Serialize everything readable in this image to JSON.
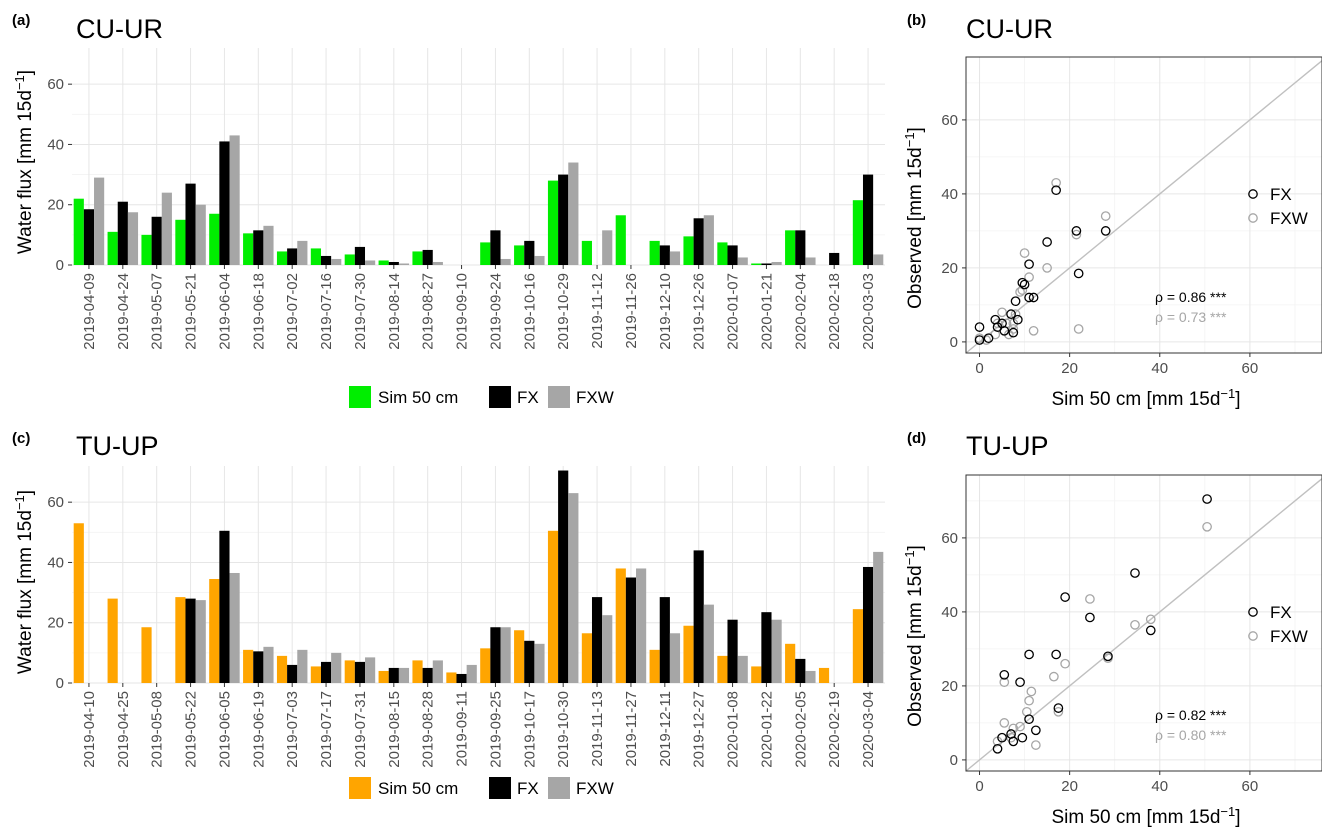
{
  "colors": {
    "sim_cu": "#00ee00",
    "sim_tu": "#ffa500",
    "fx": "#000000",
    "fxw": "#a6a6a6",
    "identity": "#c0c0c0",
    "grid": "#e6e6e6"
  },
  "legend": {
    "sim": "Sim 50 cm",
    "fx": "FX",
    "fxw": "FXW"
  },
  "axes": {
    "bar_ylabel": "Water flux [mm 15d",
    "scatter_xlabel": "Sim 50 cm [mm 15d",
    "scatter_ylabel": "Observed [mm 15d",
    "exponent": "−1",
    "close_bracket": "]"
  },
  "panels": {
    "a": {
      "letter": "(a)",
      "title": "CU-UR"
    },
    "b": {
      "letter": "(b)",
      "title": "CU-UR",
      "rho_fx": "ρ = 0.86 ***",
      "rho_fxw": "ρ = 0.73 ***"
    },
    "c": {
      "letter": "(c)",
      "title": "TU-UP"
    },
    "d": {
      "letter": "(d)",
      "title": "TU-UP",
      "rho_fx": "ρ = 0.82 ***",
      "rho_fxw": "ρ = 0.80 ***"
    }
  },
  "chart_data": [
    {
      "panel": "a",
      "type": "bar",
      "title": "CU-UR",
      "ylabel": "Water flux [mm 15d⁻¹]",
      "ylim": [
        0,
        72
      ],
      "yticks": [
        0,
        20,
        40,
        60
      ],
      "categories": [
        "2019-04-09",
        "2019-04-24",
        "2019-05-07",
        "2019-05-21",
        "2019-06-04",
        "2019-06-18",
        "2019-07-02",
        "2019-07-16",
        "2019-07-30",
        "2019-08-14",
        "2019-08-27",
        "2019-09-10",
        "2019-09-24",
        "2019-10-16",
        "2019-10-29",
        "2019-11-12",
        "2019-11-26",
        "2019-12-10",
        "2019-12-26",
        "2020-01-07",
        "2020-01-21",
        "2020-02-04",
        "2020-02-18",
        "2020-03-03"
      ],
      "series": [
        {
          "name": "Sim 50 cm",
          "color": "#00ee00",
          "values": [
            22,
            11,
            10,
            15,
            17,
            10.5,
            4.5,
            5.5,
            3.5,
            1.5,
            4.5,
            null,
            7.5,
            6.5,
            28,
            8,
            16.5,
            8,
            9.5,
            7.5,
            0.5,
            11.5,
            null,
            21.5
          ]
        },
        {
          "name": "FX",
          "color": "#000000",
          "values": [
            18.5,
            21,
            16,
            27,
            41,
            11.5,
            5.5,
            3,
            6,
            1,
            5,
            null,
            11.5,
            8,
            30,
            null,
            null,
            6.5,
            15.5,
            6.5,
            0.5,
            11.5,
            4,
            30
          ]
        },
        {
          "name": "FXW",
          "color": "#a6a6a6",
          "values": [
            29,
            17.5,
            24,
            20,
            43,
            13,
            8,
            2,
            1.5,
            0.5,
            1,
            null,
            2,
            3,
            34,
            11.5,
            null,
            4.5,
            16.5,
            2.5,
            1,
            2.5,
            null,
            3.5
          ]
        }
      ],
      "legend_position": "bottom"
    },
    {
      "panel": "b",
      "type": "scatter",
      "title": "CU-UR",
      "xlabel": "Sim 50 cm [mm 15d⁻¹]",
      "ylabel": "Observed [mm 15d⁻¹]",
      "xlim": [
        -3,
        76
      ],
      "ylim": [
        -3,
        77
      ],
      "xticks": [
        0,
        20,
        40,
        60
      ],
      "yticks": [
        0,
        20,
        40,
        60
      ],
      "identity_line": true,
      "legend_position": "right",
      "series": [
        {
          "name": "FX",
          "color": "#000000",
          "points": [
            [
              0,
              4
            ],
            [
              0,
              0.5
            ],
            [
              2,
              1
            ],
            [
              3.5,
              6
            ],
            [
              4,
              4
            ],
            [
              5,
              5
            ],
            [
              5.5,
              3
            ],
            [
              7,
              7.5
            ],
            [
              7.5,
              2.5
            ],
            [
              8,
              11
            ],
            [
              8.5,
              6
            ],
            [
              9.5,
              16
            ],
            [
              10,
              15.5
            ],
            [
              11,
              12
            ],
            [
              11,
              21
            ],
            [
              12,
              12
            ],
            [
              15,
              27
            ],
            [
              17,
              41
            ],
            [
              21.5,
              30
            ],
            [
              22,
              18.5
            ],
            [
              28,
              30
            ]
          ]
        },
        {
          "name": "FXW",
          "color": "#a6a6a6",
          "points": [
            [
              0,
              1
            ],
            [
              1.5,
              0.5
            ],
            [
              3.5,
              2
            ],
            [
              4,
              5
            ],
            [
              5,
              8
            ],
            [
              6,
              5
            ],
            [
              6.5,
              2
            ],
            [
              7.5,
              5
            ],
            [
              7.5,
              3.5
            ],
            [
              8,
              7.5
            ],
            [
              9,
              13.5
            ],
            [
              9.5,
              14
            ],
            [
              10,
              24
            ],
            [
              11,
              17.5
            ],
            [
              12,
              3
            ],
            [
              15,
              20
            ],
            [
              17,
              43
            ],
            [
              21.5,
              29
            ],
            [
              22,
              3.5
            ],
            [
              28,
              34
            ]
          ]
        }
      ],
      "annotations": [
        "ρ = 0.86 ***",
        "ρ = 0.73 ***"
      ]
    },
    {
      "panel": "c",
      "type": "bar",
      "title": "TU-UP",
      "ylabel": "Water flux [mm 15d⁻¹]",
      "ylim": [
        0,
        72
      ],
      "yticks": [
        0,
        20,
        40,
        60
      ],
      "categories": [
        "2019-04-10",
        "2019-04-25",
        "2019-05-08",
        "2019-05-22",
        "2019-06-05",
        "2019-06-19",
        "2019-07-03",
        "2019-07-17",
        "2019-07-31",
        "2019-08-15",
        "2019-08-28",
        "2019-09-11",
        "2019-09-25",
        "2019-10-17",
        "2019-10-30",
        "2019-11-13",
        "2019-11-27",
        "2019-12-11",
        "2019-12-27",
        "2020-01-08",
        "2020-01-22",
        "2020-02-05",
        "2020-02-19",
        "2020-03-04"
      ],
      "series": [
        {
          "name": "Sim 50 cm",
          "color": "#ffa500",
          "values": [
            53,
            28,
            18.5,
            28.5,
            34.5,
            11,
            9,
            5.5,
            7.5,
            4,
            7.5,
            3.5,
            11.5,
            17.5,
            50.5,
            16.5,
            38,
            11,
            19,
            9,
            5.5,
            13,
            5,
            24.5
          ]
        },
        {
          "name": "FX",
          "color": "#000000",
          "values": [
            null,
            null,
            null,
            28,
            50.5,
            10.5,
            6,
            7,
            7,
            5,
            5,
            3,
            18.5,
            14,
            70.5,
            28.5,
            35,
            28.5,
            44,
            21,
            23.5,
            8,
            null,
            38.5
          ]
        },
        {
          "name": "FXW",
          "color": "#a6a6a6",
          "values": [
            null,
            null,
            null,
            27.5,
            36.5,
            12,
            11,
            10,
            8.5,
            5,
            7.5,
            6,
            18.5,
            13,
            63,
            22.5,
            38,
            16.5,
            26,
            9,
            21,
            4,
            null,
            43.5
          ]
        }
      ],
      "legend_position": "bottom"
    },
    {
      "panel": "d",
      "type": "scatter",
      "title": "TU-UP",
      "xlabel": "Sim 50 cm [mm 15d⁻¹]",
      "ylabel": "Observed [mm 15d⁻¹]",
      "xlim": [
        -3,
        76
      ],
      "ylim": [
        -3,
        77
      ],
      "xticks": [
        0,
        20,
        40,
        60
      ],
      "yticks": [
        0,
        20,
        40,
        60
      ],
      "identity_line": true,
      "legend_position": "right",
      "series": [
        {
          "name": "FX",
          "color": "#000000",
          "points": [
            [
              4,
              3
            ],
            [
              5,
              6
            ],
            [
              5.5,
              23
            ],
            [
              7,
              7
            ],
            [
              7.5,
              5
            ],
            [
              9,
              21
            ],
            [
              9.5,
              6
            ],
            [
              11,
              28.5
            ],
            [
              11,
              11
            ],
            [
              12.5,
              8
            ],
            [
              17,
              28.5
            ],
            [
              17.5,
              14
            ],
            [
              19,
              44
            ],
            [
              24.5,
              38.5
            ],
            [
              28.5,
              28
            ],
            [
              34.5,
              50.5
            ],
            [
              38,
              35
            ],
            [
              50.5,
              70.5
            ]
          ]
        },
        {
          "name": "FXW",
          "color": "#a6a6a6",
          "points": [
            [
              4,
              5
            ],
            [
              5.5,
              21
            ],
            [
              5.5,
              10
            ],
            [
              7,
              6
            ],
            [
              7.5,
              8.5
            ],
            [
              9,
              9
            ],
            [
              10.5,
              13
            ],
            [
              11,
              16
            ],
            [
              11.5,
              18.5
            ],
            [
              12.5,
              4
            ],
            [
              16.5,
              22.5
            ],
            [
              17.5,
              13
            ],
            [
              19,
              26
            ],
            [
              24.5,
              43.5
            ],
            [
              28.5,
              27.5
            ],
            [
              34.5,
              36.5
            ],
            [
              38,
              38
            ],
            [
              50.5,
              63
            ]
          ]
        }
      ],
      "annotations": [
        "ρ = 0.82 ***",
        "ρ = 0.80 ***"
      ]
    }
  ]
}
